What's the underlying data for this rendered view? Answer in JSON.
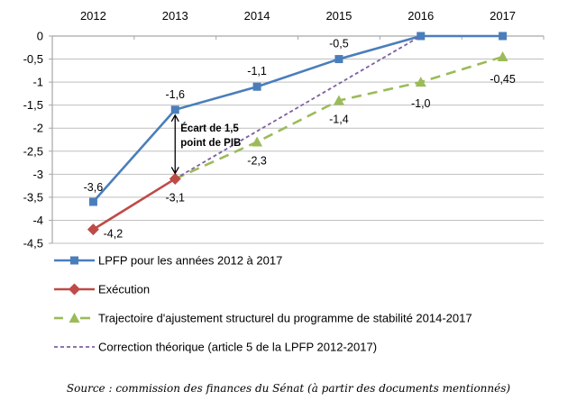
{
  "chart_data": {
    "type": "line",
    "title": "",
    "xlabel": "",
    "ylabel": "",
    "x": [
      "2012",
      "2013",
      "2014",
      "2015",
      "2016",
      "2017"
    ],
    "x_axis_position": "top",
    "ylim": [
      -4.5,
      0
    ],
    "yticks": [
      0,
      -0.5,
      -1,
      -1.5,
      -2,
      -2.5,
      -3,
      -3.5,
      -4,
      -4.5
    ],
    "ytick_labels": [
      "0",
      "-0,5",
      "-1",
      "-1,5",
      "-2",
      "-2,5",
      "-3",
      "-3,5",
      "-4",
      "-4,5"
    ],
    "grid": true,
    "legend_position": "bottom",
    "series": [
      {
        "name": "LPFP pour les années 2012 à 2017",
        "color": "#4a7ebb",
        "style": "solid",
        "marker": "square",
        "values": [
          -3.6,
          -1.6,
          -1.1,
          -0.5,
          0,
          0
        ],
        "labels": [
          "-3,6",
          "-1,6",
          "-1,1",
          "-0,5",
          null,
          null
        ]
      },
      {
        "name": "Exécution",
        "color": "#be4b48",
        "style": "solid",
        "marker": "diamond",
        "values": [
          -4.2,
          -3.1,
          null,
          null,
          null,
          null
        ],
        "labels": [
          "-4,2",
          "-3,1",
          null,
          null,
          null,
          null
        ]
      },
      {
        "name": "Trajectoire d'ajustement structurel du programme de stabilité 2014-2017",
        "color": "#9bbb59",
        "style": "dashed",
        "marker": "triangle",
        "values": [
          null,
          -3.1,
          -2.3,
          -1.4,
          -1.0,
          -0.45
        ],
        "labels": [
          null,
          null,
          "-2,3",
          "-1,4",
          "-1,0",
          "-0,45"
        ]
      },
      {
        "name": "Correction théorique (article 5 de la LPFP 2012-2017)",
        "color": "#7d60a0",
        "style": "dotted",
        "marker": "none",
        "values": [
          null,
          -3.1,
          null,
          null,
          0,
          null
        ],
        "labels": [
          null,
          null,
          null,
          null,
          null,
          null
        ]
      }
    ],
    "annotations": [
      {
        "text_lines": [
          "Écart de 1,5",
          "point de PIB"
        ],
        "type": "double-arrow",
        "x": "2013",
        "from": -1.6,
        "to": -3.1
      }
    ]
  },
  "source": "Source : commission  des finances du Sénat  (à partir  des documents  mentionnés)"
}
